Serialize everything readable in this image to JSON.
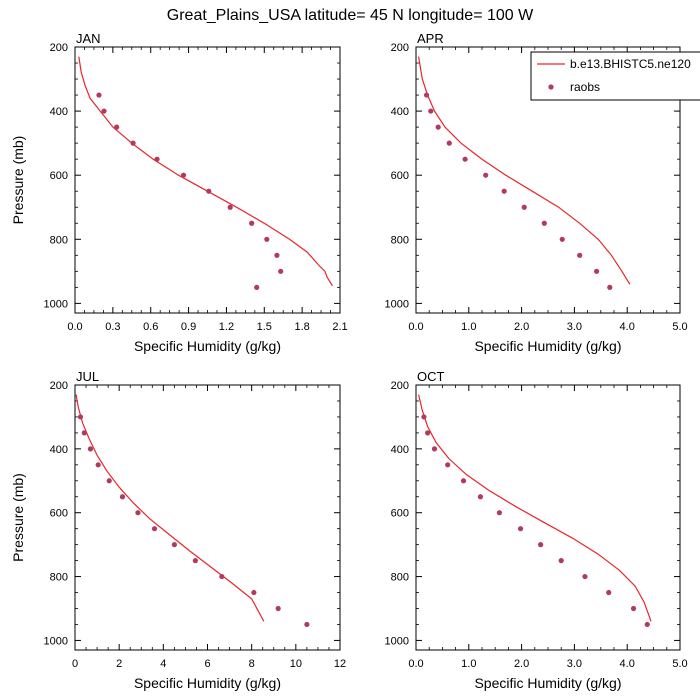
{
  "title": "Great_Plains_USA  latitude= 45 N longitude= 100 W",
  "legend": {
    "model_label": "b.e13.BHISTC5.ne120",
    "obs_label": "raobs"
  },
  "colors": {
    "model": "#e8262a",
    "obs": "#b33a5e"
  },
  "chart_data": [
    {
      "type": "line",
      "panel": "JAN",
      "title": "JAN",
      "xlabel": "Specific Humidity (g/kg)",
      "ylabel": "Pressure (mb)",
      "xlim": [
        0,
        2.1
      ],
      "ylim": [
        200,
        1030
      ],
      "y_inverted": true,
      "xticks": [
        "0.0",
        "0.3",
        "0.6",
        "0.9",
        "1.2",
        "1.5",
        "1.8",
        "2.1"
      ],
      "yticks": [
        "200",
        "400",
        "600",
        "800",
        "1000"
      ],
      "series": [
        {
          "name": "b.e13.BHISTC5.ne120",
          "kind": "line",
          "x": [
            0.03,
            0.05,
            0.08,
            0.12,
            0.2,
            0.3,
            0.45,
            0.62,
            0.82,
            1.05,
            1.28,
            1.5,
            1.7,
            1.84,
            1.93,
            1.98,
            2.0,
            2.04
          ],
          "y": [
            230,
            280,
            320,
            360,
            400,
            450,
            500,
            550,
            600,
            650,
            700,
            750,
            800,
            840,
            880,
            900,
            920,
            945
          ]
        },
        {
          "name": "raobs",
          "kind": "scatter",
          "x": [
            0.19,
            0.23,
            0.33,
            0.46,
            0.65,
            0.86,
            1.06,
            1.23,
            1.4,
            1.52,
            1.6,
            1.63,
            1.44
          ],
          "y": [
            350,
            400,
            450,
            500,
            550,
            600,
            650,
            700,
            750,
            800,
            850,
            900,
            950
          ]
        }
      ]
    },
    {
      "type": "line",
      "panel": "APR",
      "title": "APR",
      "xlabel": "Specific Humidity (g/kg)",
      "ylabel": "",
      "xlim": [
        0,
        5.0
      ],
      "ylim": [
        200,
        1030
      ],
      "y_inverted": true,
      "xticks": [
        "0.0",
        "1.0",
        "2.0",
        "3.0",
        "4.0",
        "5.0"
      ],
      "yticks": [
        "200",
        "400",
        "600",
        "800",
        "1000"
      ],
      "series": [
        {
          "name": "b.e13.BHISTC5.ne120",
          "kind": "line",
          "x": [
            0.05,
            0.12,
            0.22,
            0.35,
            0.55,
            0.85,
            1.25,
            1.7,
            2.2,
            2.7,
            3.1,
            3.45,
            3.7,
            3.9,
            4.05
          ],
          "y": [
            230,
            300,
            350,
            400,
            450,
            500,
            550,
            600,
            650,
            700,
            750,
            800,
            850,
            900,
            940
          ]
        },
        {
          "name": "raobs",
          "kind": "scatter",
          "x": [
            0.2,
            0.28,
            0.42,
            0.63,
            0.93,
            1.32,
            1.67,
            2.05,
            2.43,
            2.77,
            3.1,
            3.42,
            3.67
          ],
          "y": [
            350,
            400,
            450,
            500,
            550,
            600,
            650,
            700,
            750,
            800,
            850,
            900,
            950
          ]
        }
      ]
    },
    {
      "type": "line",
      "panel": "JUL",
      "title": "JUL",
      "xlabel": "Specific Humidity (g/kg)",
      "ylabel": "Pressure (mb)",
      "xlim": [
        0,
        12
      ],
      "ylim": [
        200,
        1030
      ],
      "y_inverted": true,
      "xticks": [
        "0",
        "2",
        "4",
        "6",
        "8",
        "10",
        "12"
      ],
      "yticks": [
        "200",
        "400",
        "600",
        "800",
        "1000"
      ],
      "series": [
        {
          "name": "b.e13.BHISTC5.ne120",
          "kind": "line",
          "x": [
            0.05,
            0.15,
            0.35,
            0.65,
            1.0,
            1.45,
            2.0,
            2.65,
            3.4,
            4.3,
            5.2,
            6.15,
            7.1,
            8.0,
            8.55
          ],
          "y": [
            230,
            270,
            320,
            370,
            420,
            470,
            520,
            570,
            620,
            670,
            720,
            770,
            820,
            870,
            940
          ]
        },
        {
          "name": "raobs",
          "kind": "scatter",
          "x": [
            0.25,
            0.42,
            0.7,
            1.05,
            1.55,
            2.15,
            2.85,
            3.6,
            4.5,
            5.45,
            6.65,
            8.1,
            9.2,
            10.5
          ],
          "y": [
            300,
            350,
            400,
            450,
            500,
            550,
            600,
            650,
            700,
            750,
            800,
            850,
            900,
            950
          ]
        }
      ]
    },
    {
      "type": "line",
      "panel": "OCT",
      "title": "OCT",
      "xlabel": "Specific Humidity (g/kg)",
      "ylabel": "",
      "xlim": [
        0,
        5.0
      ],
      "ylim": [
        200,
        1030
      ],
      "y_inverted": true,
      "xticks": [
        "0.0",
        "1.0",
        "2.0",
        "3.0",
        "4.0",
        "5.0"
      ],
      "yticks": [
        "200",
        "400",
        "600",
        "800",
        "1000"
      ],
      "series": [
        {
          "name": "b.e13.BHISTC5.ne120",
          "kind": "line",
          "x": [
            0.05,
            0.12,
            0.22,
            0.38,
            0.62,
            0.95,
            1.38,
            1.88,
            2.42,
            2.97,
            3.45,
            3.85,
            4.15,
            4.32,
            4.45
          ],
          "y": [
            230,
            280,
            330,
            380,
            430,
            480,
            530,
            580,
            630,
            680,
            730,
            780,
            830,
            880,
            940
          ]
        },
        {
          "name": "raobs",
          "kind": "scatter",
          "x": [
            0.15,
            0.22,
            0.35,
            0.6,
            0.9,
            1.22,
            1.58,
            1.98,
            2.36,
            2.75,
            3.2,
            3.65,
            4.12,
            4.38
          ],
          "y": [
            300,
            350,
            400,
            450,
            500,
            550,
            600,
            650,
            700,
            750,
            800,
            850,
            900,
            950
          ]
        }
      ]
    }
  ]
}
